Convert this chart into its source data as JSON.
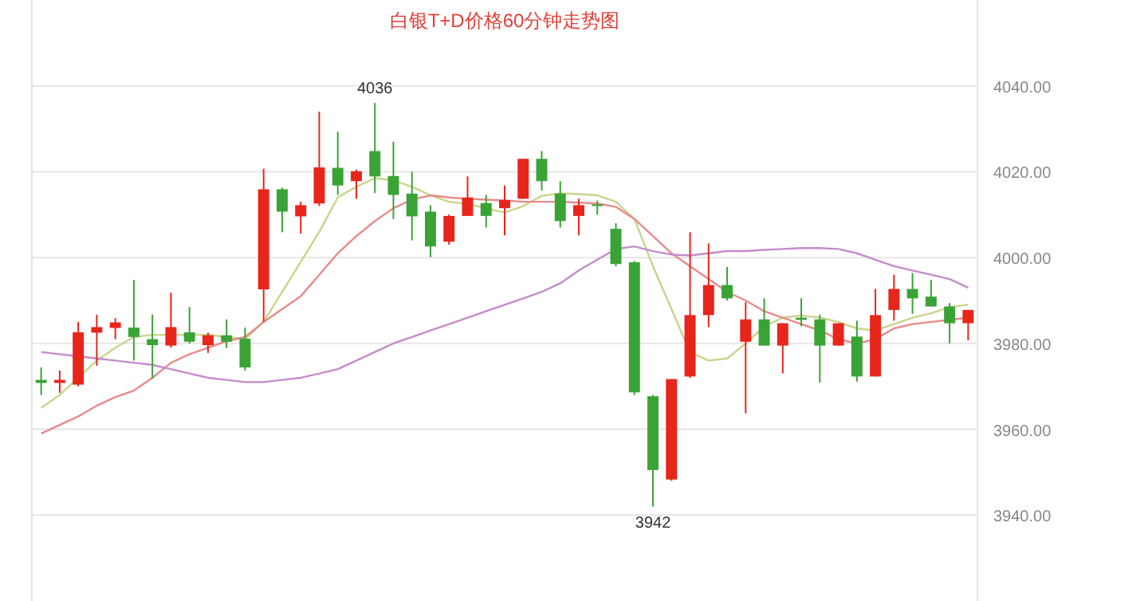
{
  "chart_data": {
    "type": "candlestick",
    "title": "白银T+D价格60分钟走势图",
    "categories": [
      null,
      null,
      null,
      null,
      null,
      null,
      null,
      null,
      null,
      null,
      null,
      null,
      null,
      null,
      null,
      null,
      null,
      null,
      null,
      null,
      null,
      null,
      null,
      null,
      null,
      null,
      null,
      null,
      null,
      null,
      null,
      null,
      null,
      null,
      null,
      null,
      null,
      null,
      null,
      null,
      null,
      null,
      null,
      null,
      null,
      null,
      null,
      null,
      null,
      null,
      null
    ],
    "ohlc": [
      [
        3971.5,
        3974.4,
        3968,
        3970.8
      ],
      [
        3970.8,
        3973.7,
        3968.5,
        3971.5
      ],
      [
        3970.4,
        3985,
        3970,
        3982.6
      ],
      [
        3982.5,
        3986.7,
        3974.8,
        3983.8
      ],
      [
        3983.6,
        3985.9,
        3981,
        3984.9
      ],
      [
        3983.7,
        3994.8,
        3976,
        3981.5
      ],
      [
        3981,
        3986.7,
        3971.8,
        3979.6
      ],
      [
        3979.5,
        3991.8,
        3979,
        3983.8
      ],
      [
        3982.6,
        3988.5,
        3980,
        3980.4
      ],
      [
        3979.6,
        3982.5,
        3977.8,
        3981.9
      ],
      [
        3981.9,
        3985.6,
        3978.9,
        3980.4
      ],
      [
        3981.1,
        3983.7,
        3973.7,
        3974.4
      ],
      [
        3992.6,
        4020.7,
        3985,
        4015.9
      ],
      [
        4015.9,
        4016.3,
        4005.9,
        4010.7
      ],
      [
        4009.6,
        4013,
        4005.6,
        4012.2
      ],
      [
        4012.6,
        4034,
        4012,
        4021
      ],
      [
        4020.9,
        4029.3,
        4014.6,
        4016.8
      ],
      [
        4017.8,
        4020.5,
        4013.7,
        4020.1
      ],
      [
        4024.8,
        4036,
        4015,
        4018.9
      ],
      [
        4019,
        4027,
        4009,
        4014.6
      ],
      [
        4014.9,
        4020,
        4004,
        4009.6
      ],
      [
        4010.7,
        4012.2,
        4000.1,
        4002.6
      ],
      [
        4003.7,
        4010,
        4003,
        4009.7
      ],
      [
        4009.7,
        4018.9,
        4009.7,
        4014
      ],
      [
        4012.7,
        4014.6,
        4007,
        4009.7
      ],
      [
        4011.5,
        4016.8,
        4005.2,
        4013.4
      ],
      [
        4013.7,
        4023,
        4013.7,
        4023
      ],
      [
        4023,
        4024.8,
        4015.6,
        4017.8
      ],
      [
        4014.9,
        4017.8,
        4007,
        4008.5
      ],
      [
        4009.7,
        4013.7,
        4005.2,
        4012.2
      ],
      [
        4012.4,
        4013.3,
        4010,
        4012
      ],
      [
        4006.7,
        4008,
        3998,
        3998.5
      ],
      [
        3998.9,
        3999.2,
        3968,
        3968.6
      ],
      [
        3967.7,
        3968,
        3942,
        3950.5
      ],
      [
        3948.3,
        3971.7,
        3948,
        3971.7
      ],
      [
        3972.3,
        4005.9,
        3972,
        3986.6
      ],
      [
        3986.6,
        4003.3,
        3983.8,
        3993.6
      ],
      [
        3993.6,
        3997.8,
        3990,
        3990.5
      ],
      [
        3980.4,
        3989.6,
        3963.7,
        3985.6
      ],
      [
        3985.6,
        3990.5,
        3979.5,
        3979.5
      ],
      [
        3979.5,
        3984.7,
        3973,
        3984.7
      ],
      [
        3986,
        3990.5,
        3984,
        3985.5
      ],
      [
        3985.6,
        3986.7,
        3970.9,
        3979.5
      ],
      [
        3979.5,
        3984.7,
        3979.5,
        3984.7
      ],
      [
        3981.6,
        3985.3,
        3971.1,
        3972.3
      ],
      [
        3972.3,
        3992.7,
        3972.3,
        3986.6
      ],
      [
        3987.8,
        3996,
        3985.3,
        3992.7
      ],
      [
        3992.7,
        3996.4,
        3986.9,
        3990.5
      ],
      [
        3990.9,
        3994.8,
        3988.6,
        3988.6
      ],
      [
        3988.6,
        3989.4,
        3980,
        3984.7
      ],
      [
        3984.7,
        3987.8,
        3980.7,
        3987.8
      ]
    ],
    "colors": [
      "#3aa336",
      "#e8251b",
      "#e8251b",
      "#e8251b",
      "#e8251b",
      "#3aa336",
      "#3aa336",
      "#e8251b",
      "#3aa336",
      "#e8251b",
      "#3aa336",
      "#3aa336",
      "#e8251b",
      "#3aa336",
      "#e8251b",
      "#e8251b",
      "#3aa336",
      "#e8251b",
      "#3aa336",
      "#3aa336",
      "#3aa336",
      "#3aa336",
      "#e8251b",
      "#e8251b",
      "#3aa336",
      "#e8251b",
      "#e8251b",
      "#3aa336",
      "#3aa336",
      "#e8251b",
      "#3aa336",
      "#3aa336",
      "#3aa336",
      "#3aa336",
      "#e8251b",
      "#e8251b",
      "#e8251b",
      "#3aa336",
      "#e8251b",
      "#3aa336",
      "#e8251b",
      "#3aa336",
      "#3aa336",
      "#e8251b",
      "#3aa336",
      "#e8251b",
      "#e8251b",
      "#3aa336",
      "#3aa336",
      "#3aa336",
      "#e8251b"
    ],
    "series": [
      {
        "type": "line",
        "color": "#c9d48c",
        "values": [
          3965,
          3968,
          3972,
          3976,
          3979,
          3981.5,
          3982,
          3982,
          3982,
          3982,
          3981.5,
          3981,
          3985,
          3992,
          3999,
          4006,
          4014,
          4016.5,
          4018.5,
          4018,
          4016.5,
          4014.5,
          4013,
          4012.5,
          4011.5,
          4010.5,
          4012,
          4014.4,
          4015,
          4014.8,
          4014.5,
          4013,
          4009,
          3998,
          3988,
          3978,
          3976,
          3976.5,
          3980,
          3984,
          3986,
          3986.5,
          3986,
          3985,
          3983.5,
          3983,
          3984.5,
          3986,
          3987,
          3988.5,
          3989
        ]
      },
      {
        "type": "line",
        "color": "#e88a8a",
        "values": [
          3959,
          3961,
          3963,
          3965.5,
          3967.5,
          3969,
          3972,
          3975.5,
          3977.5,
          3979,
          3980.5,
          3981.5,
          3985,
          3988,
          3991,
          3996,
          4001,
          4005,
          4008.5,
          4011.5,
          4013.5,
          4014.5,
          4014,
          4013.7,
          4013.5,
          4013.3,
          4013,
          4013,
          4013,
          4012.8,
          4012.6,
          4011.8,
          4009,
          4005,
          4001,
          3998,
          3995,
          3992,
          3990,
          3987.5,
          3986,
          3984.5,
          3983,
          3981,
          3980,
          3981,
          3983.5,
          3984.5,
          3985,
          3985.5,
          3986
        ]
      },
      {
        "type": "line",
        "color": "#c58bcb",
        "values": [
          3978,
          3977.5,
          3977,
          3976.5,
          3976,
          3975.5,
          3975,
          3974,
          3973,
          3972,
          3971.5,
          3971,
          3971,
          3971.5,
          3972,
          3973,
          3974,
          3976,
          3978,
          3980,
          3981.5,
          3983,
          3984.5,
          3986,
          3987.5,
          3989,
          3990.5,
          3992,
          3994,
          3997,
          3999.5,
          4002,
          4002.6,
          4001.5,
          4000.7,
          4000.5,
          4001,
          4001.5,
          4001.5,
          4001.8,
          4002,
          4002.2,
          4002.2,
          4002,
          4001,
          3999.5,
          3998,
          3997,
          3996,
          3995,
          3993
        ]
      }
    ],
    "ylim": [
      3920,
      4060
    ],
    "yticks": [
      {
        "value": 3940,
        "label": "3940.00"
      },
      {
        "value": 3960,
        "label": "3960.00"
      },
      {
        "value": 3980,
        "label": "3980.00"
      },
      {
        "value": 4000,
        "label": "4000.00"
      },
      {
        "value": 4020,
        "label": "4020.00"
      },
      {
        "value": 4040,
        "label": "4040.00"
      }
    ],
    "grid": "y",
    "annotations": [
      {
        "text": "4036",
        "y": 4036
      },
      {
        "text": "3942",
        "y": 3942
      }
    ]
  }
}
